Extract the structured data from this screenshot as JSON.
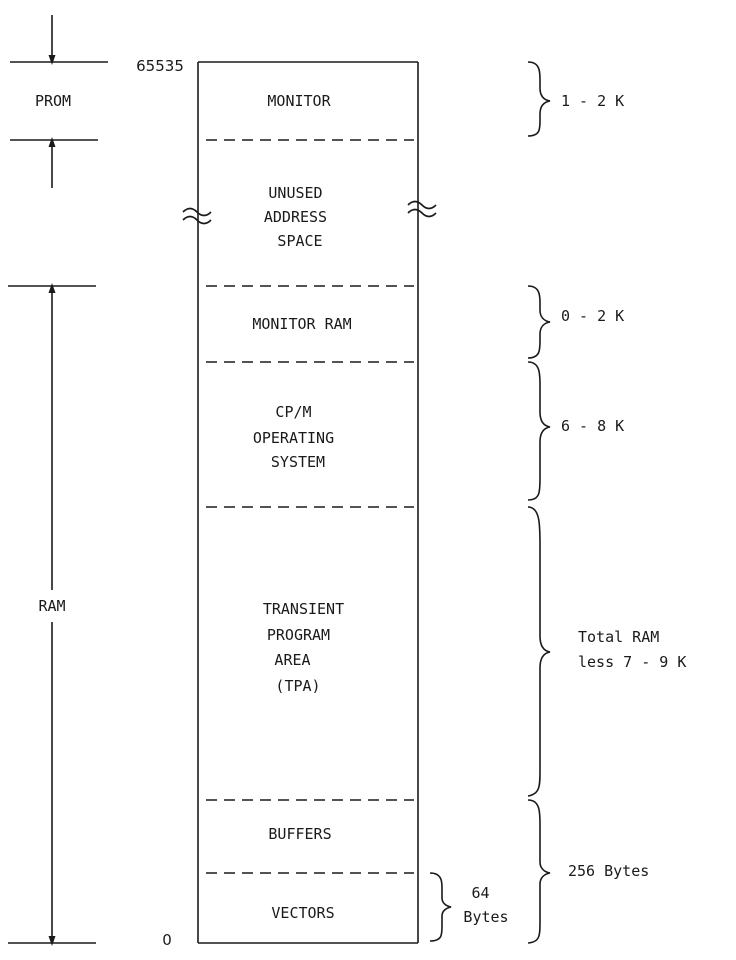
{
  "addresses": {
    "top": "65535",
    "bottom": "0"
  },
  "memory_regions": {
    "prom": "PROM",
    "ram": "RAM"
  },
  "segments": {
    "monitor": [
      "MONITOR"
    ],
    "unused": [
      "UNUSED",
      "ADDRESS",
      "SPACE"
    ],
    "monitor_ram": [
      "MONITOR RAM"
    ],
    "cpm": [
      "CP/M",
      "OPERATING",
      "SYSTEM"
    ],
    "tpa": [
      "TRANSIENT",
      "PROGRAM",
      "AREA",
      "(TPA)"
    ],
    "buffers": [
      "BUFFERS"
    ],
    "vectors": [
      "VECTORS"
    ]
  },
  "sizes": {
    "monitor": [
      "1 - 2 K"
    ],
    "monitor_ram": [
      "0 - 2 K"
    ],
    "cpm": [
      "6 - 8 K"
    ],
    "tpa": [
      "Total RAM",
      "less 7 - 9 K"
    ],
    "buffers_vectors": [
      "256 Bytes"
    ],
    "vectors": [
      "64",
      "Bytes"
    ]
  }
}
